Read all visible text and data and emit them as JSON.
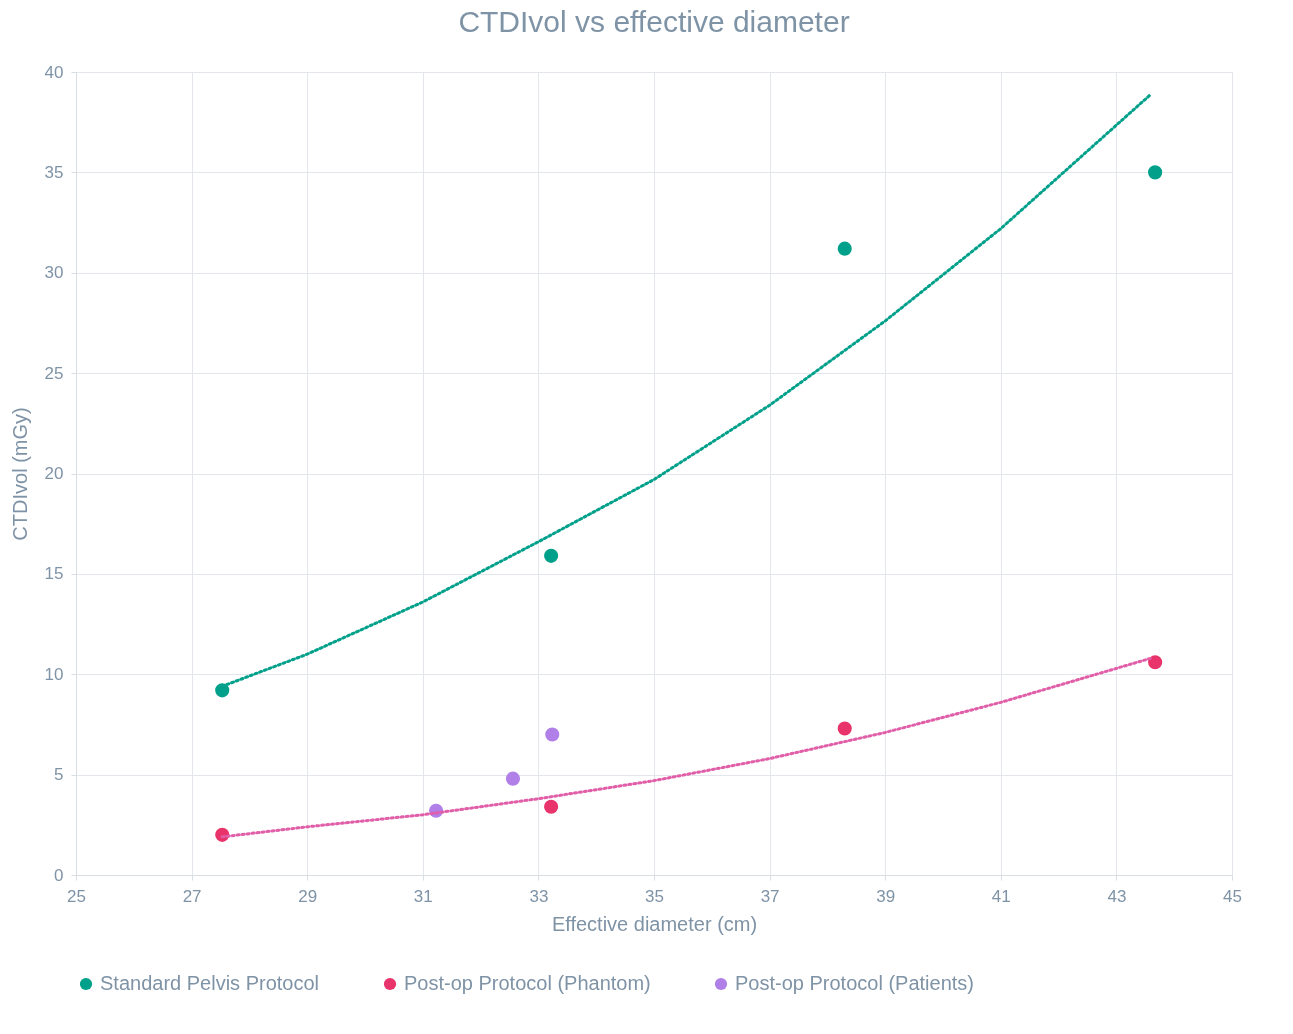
{
  "chart_data": {
    "type": "scatter",
    "title": "CTDIvol vs effective diameter",
    "xlabel": "Effective diameter (cm)",
    "ylabel": "CTDIvol (mGy)",
    "xlim": [
      25,
      45
    ],
    "xticks": [
      25,
      27,
      29,
      31,
      33,
      35,
      37,
      39,
      41,
      43,
      45
    ],
    "ylim": [
      0,
      40
    ],
    "yticks": [
      0,
      5,
      10,
      15,
      20,
      25,
      30,
      35,
      40
    ],
    "grid": true,
    "legend": "bottom",
    "marker": "circle",
    "series": [
      {
        "name": "Standard Pelvis Protocol",
        "color": "#00a08a",
        "x": [
          27.53,
          33.22,
          38.3,
          43.67
        ],
        "values": [
          9.2,
          15.9,
          31.2,
          35.0
        ]
      },
      {
        "name": "Post-op Protocol (Phantom)",
        "color": "#e8336b",
        "x": [
          27.53,
          33.22,
          38.3,
          43.67
        ],
        "values": [
          2.0,
          3.4,
          7.3,
          10.6
        ]
      },
      {
        "name": "Post-op Protocol (Patients)",
        "color": "#b07fe8",
        "x": [
          31.23,
          32.56,
          33.24
        ],
        "values": [
          3.2,
          4.8,
          7.0
        ]
      },
      {
        "type": "line",
        "color": "#00a08a",
        "line_style": "dotted",
        "marker": "none",
        "x": [
          27.53,
          29,
          31,
          33,
          35,
          37,
          39,
          41,
          43.6
        ],
        "values": [
          9.4,
          11.0,
          13.6,
          16.6,
          19.7,
          23.4,
          27.6,
          32.2,
          38.9
        ]
      },
      {
        "type": "line",
        "color": "#e05fa8",
        "line_style": "dotted",
        "marker": "none",
        "x": [
          27.53,
          29,
          31,
          33,
          35,
          37,
          39,
          41,
          43.6
        ],
        "values": [
          1.9,
          2.4,
          3.0,
          3.8,
          4.7,
          5.8,
          7.1,
          8.6,
          10.8
        ]
      }
    ]
  }
}
